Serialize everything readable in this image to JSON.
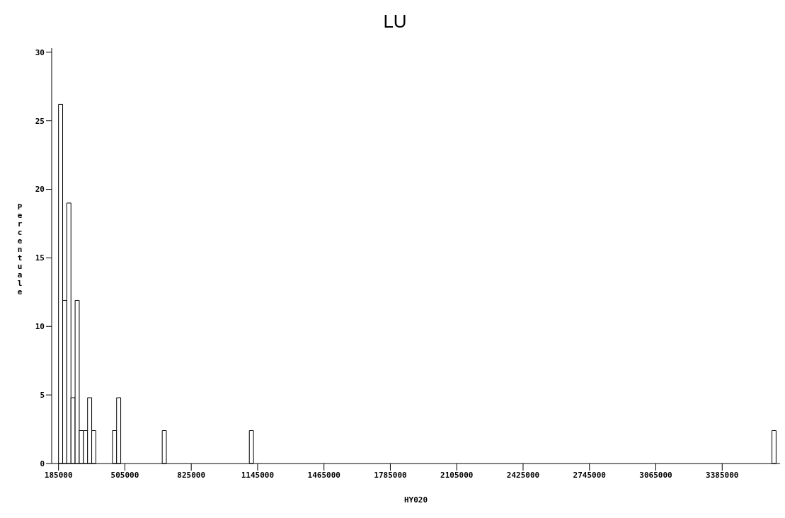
{
  "chart_data": {
    "type": "histogram",
    "title": "LU",
    "xlabel": "HY020",
    "ylabel": "Percentuale",
    "bins": [
      185000,
      205000,
      225000,
      245000,
      265000,
      285000,
      305000,
      325000,
      345000,
      365000,
      445000,
      465000,
      485000,
      685000,
      705000,
      1105000,
      1125000,
      3625000,
      3645000
    ],
    "values": [
      26.2,
      11.9,
      19.0,
      4.8,
      11.9,
      2.4,
      2.4,
      4.8,
      2.4,
      0,
      2.4,
      4.8,
      0,
      2.4,
      0,
      2.4,
      0,
      2.4
    ],
    "color": "#ffffff",
    "xlim": [
      152000,
      3664000
    ],
    "xticks": [
      185000,
      505000,
      825000,
      1145000,
      1465000,
      1785000,
      2105000,
      2425000,
      2745000,
      3065000,
      3385000
    ],
    "ylim": [
      0,
      30.3
    ],
    "yticks": [
      0,
      5,
      10,
      15,
      20,
      25,
      30
    ],
    "grid": false
  }
}
